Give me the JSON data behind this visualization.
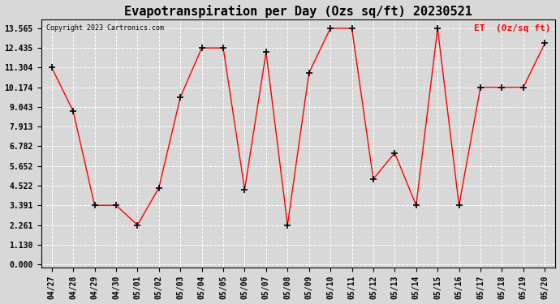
{
  "title": "Evapotranspiration per Day (Ozs sq/ft) 20230521",
  "legend_label": "ET  (0z/sq ft)",
  "copyright_text": "Copyright 2023 Cartronics.com",
  "dates": [
    "04/27",
    "04/28",
    "04/29",
    "04/30",
    "05/01",
    "05/02",
    "05/03",
    "05/04",
    "05/05",
    "05/06",
    "05/07",
    "05/08",
    "05/09",
    "05/10",
    "05/11",
    "05/12",
    "05/13",
    "05/14",
    "05/15",
    "05/16",
    "05/17",
    "05/18",
    "05/19",
    "05/20"
  ],
  "values": [
    11.304,
    8.8,
    3.391,
    3.391,
    2.261,
    4.4,
    9.6,
    12.435,
    12.435,
    4.3,
    12.2,
    2.261,
    11.0,
    13.565,
    13.565,
    4.9,
    6.4,
    3.391,
    13.565,
    3.391,
    10.174,
    10.174,
    10.174,
    12.7
  ],
  "yticks": [
    0.0,
    1.13,
    2.261,
    3.391,
    4.522,
    5.652,
    6.782,
    7.913,
    9.043,
    10.174,
    11.304,
    12.435,
    13.565
  ],
  "line_color": "red",
  "marker": "+",
  "marker_color": "black",
  "bg_color": "#d8d8d8",
  "grid_color": "white",
  "title_fontsize": 11,
  "legend_color": "red",
  "ylim_min": 0.0,
  "ylim_max": 13.565
}
